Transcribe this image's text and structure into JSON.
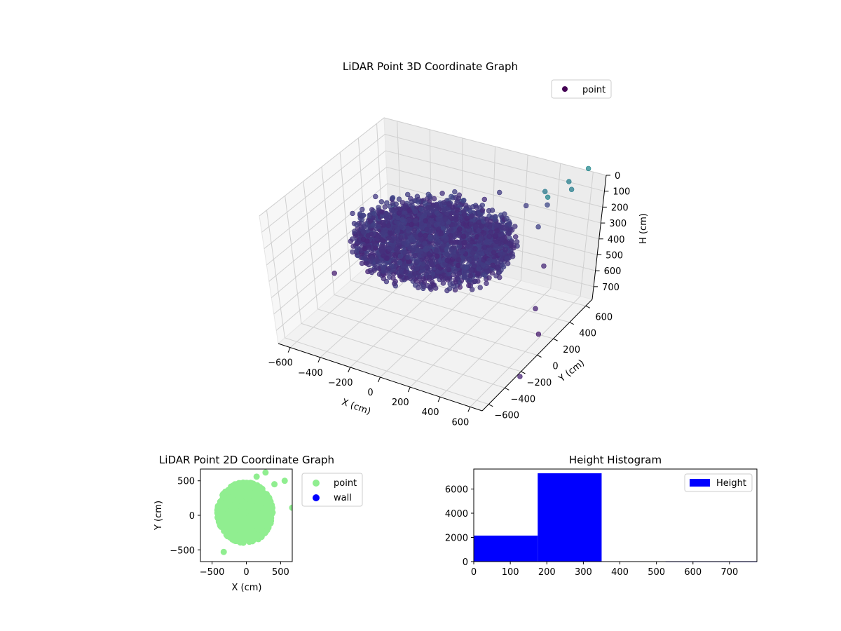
{
  "chart_data": [
    {
      "type": "scatter",
      "projection": "3d",
      "title": "LiDAR Point 3D Coordinate Graph",
      "xlabel": "X (cm)",
      "ylabel": "Y (cm)",
      "zlabel": "H (cm)",
      "xlim": [
        -680,
        680
      ],
      "ylim": [
        -680,
        680
      ],
      "zlim": [
        780,
        0
      ],
      "zaxis_inverted": true,
      "xticks": [
        "−600",
        "−400",
        "−200",
        "0",
        "200",
        "400",
        "600"
      ],
      "yticks": [
        "−600",
        "−400",
        "−200",
        "0",
        "200",
        "400",
        "600"
      ],
      "zticks": [
        "0",
        "100",
        "200",
        "300",
        "400",
        "500",
        "600",
        "700"
      ],
      "grid": true,
      "legend": {
        "position": "top-right",
        "entries": [
          "point"
        ]
      },
      "colormap": "viridis (colored by height)",
      "series": [
        {
          "name": "point",
          "color": "#440154",
          "cluster": {
            "center": [
              0,
              0
            ],
            "radius": 480,
            "height_range": [
              150,
              330
            ],
            "approx_count": 9500
          },
          "outliers": [
            {
              "x": 560,
              "y": 700,
              "h": 0
            },
            {
              "x": 520,
              "y": 560,
              "h": 20
            },
            {
              "x": 470,
              "y": 420,
              "h": 60
            },
            {
              "x": 520,
              "y": 600,
              "h": 90
            },
            {
              "x": 380,
              "y": 560,
              "h": 120
            },
            {
              "x": 430,
              "y": 500,
              "h": 160
            },
            {
              "x": 300,
              "y": 500,
              "h": 200
            },
            {
              "x": 470,
              "y": 330,
              "h": 200
            },
            {
              "x": 260,
              "y": 260,
              "h": 300
            },
            {
              "x": 560,
              "y": 250,
              "h": 380
            },
            {
              "x": 600,
              "y": 100,
              "h": 560
            },
            {
              "x": 640,
              "y": 80,
              "h": 700
            },
            {
              "x": -640,
              "y": -40,
              "h": 620
            },
            {
              "x": 100,
              "y": 560,
              "h": 200
            },
            {
              "x": 40,
              "y": 500,
              "h": 230
            },
            {
              "x": 700,
              "y": -250,
              "h": 780
            },
            {
              "x": 320,
              "y": 150,
              "h": 330
            }
          ]
        }
      ]
    },
    {
      "type": "scatter",
      "title": "LiDAR Point 2D Coordinate Graph",
      "xlabel": "X (cm)",
      "ylabel": "Y (cm)",
      "xlim": [
        -670,
        670
      ],
      "ylim": [
        -670,
        670
      ],
      "xticks": [
        "−500",
        "0",
        "500"
      ],
      "yticks": [
        "−500",
        "0",
        "500"
      ],
      "legend": {
        "position": "outside-right",
        "entries": [
          "point",
          "wall"
        ]
      },
      "series": [
        {
          "name": "point",
          "color": "#90ee90",
          "cluster": {
            "center": [
              0,
              0
            ],
            "radius": 440,
            "approx_count": 9500
          },
          "outliers": [
            {
              "x": 280,
              "y": 620
            },
            {
              "x": 560,
              "y": 500
            },
            {
              "x": 410,
              "y": 450
            },
            {
              "x": 670,
              "y": 110
            },
            {
              "x": -330,
              "y": -530
            },
            {
              "x": 150,
              "y": 560
            }
          ]
        },
        {
          "name": "wall",
          "color": "#0000ff",
          "points": []
        }
      ]
    },
    {
      "type": "bar",
      "subtype": "histogram",
      "title": "Height Histogram",
      "xlabel": "",
      "ylabel": "",
      "xlim": [
        0,
        775
      ],
      "ylim": [
        0,
        7650
      ],
      "xticks": [
        "0",
        "100",
        "200",
        "300",
        "400",
        "500",
        "600",
        "700"
      ],
      "yticks": [
        "0",
        "2000",
        "4000",
        "6000"
      ],
      "legend": {
        "position": "top-right",
        "entries": [
          "Height"
        ]
      },
      "color": "#0000ff",
      "bins": [
        {
          "from": 0,
          "to": 175,
          "count": 2150
        },
        {
          "from": 175,
          "to": 350,
          "count": 7300
        },
        {
          "from": 350,
          "to": 525,
          "count": 20
        },
        {
          "from": 525,
          "to": 700,
          "count": 8
        },
        {
          "from": 700,
          "to": 775,
          "count": 4
        }
      ]
    }
  ]
}
